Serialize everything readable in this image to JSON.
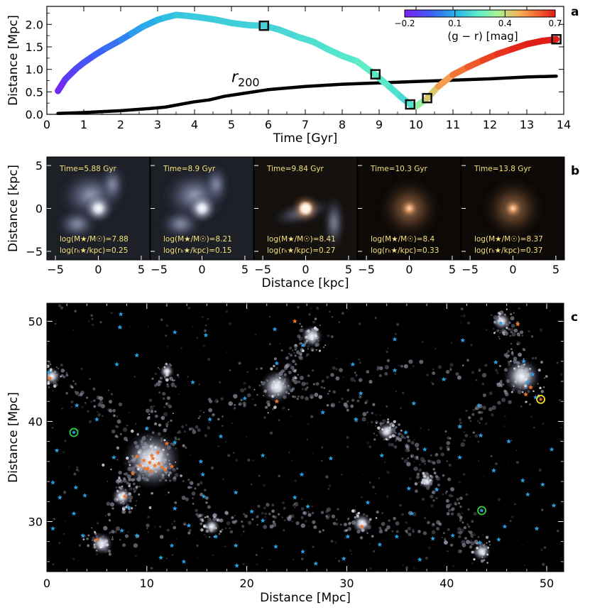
{
  "panel_labels": {
    "a": "a",
    "b": "b",
    "c": "c"
  },
  "chart_data": [
    {
      "type": "line",
      "panel": "a",
      "xlabel": "Time [Gyr]",
      "ylabel": "Distance [Mpc]",
      "xlim": [
        0,
        14
      ],
      "ylim": [
        0,
        2.4
      ],
      "xticks": [
        0,
        1,
        2,
        3,
        4,
        5,
        6,
        7,
        8,
        9,
        10,
        11,
        12,
        13,
        14
      ],
      "yticks": [
        0.0,
        0.5,
        1.0,
        1.5,
        2.0
      ],
      "ytick_labels": [
        "0.0",
        "0.5",
        "1.0",
        "1.5",
        "2.0"
      ],
      "r200_label": "r",
      "r200_sub": "200",
      "series": [
        {
          "role": "orbit colored by (g - r)",
          "x": [
            0.3,
            0.5,
            0.8,
            1.0,
            1.3,
            1.6,
            2.0,
            2.3,
            2.6,
            3.0,
            3.2,
            3.5,
            3.8,
            4.2,
            4.6,
            5.0,
            5.5,
            5.9,
            6.3,
            6.8,
            7.2,
            7.6,
            8.0,
            8.4,
            8.9,
            9.3,
            9.6,
            9.84,
            10.0,
            10.3,
            10.6,
            11.0,
            11.4,
            11.8,
            12.2,
            12.6,
            13.0,
            13.4,
            13.8
          ],
          "y": [
            0.52,
            0.78,
            1.02,
            1.15,
            1.32,
            1.47,
            1.65,
            1.8,
            1.95,
            2.1,
            2.15,
            2.21,
            2.19,
            2.15,
            2.1,
            2.03,
            1.98,
            1.97,
            1.88,
            1.72,
            1.62,
            1.45,
            1.3,
            1.18,
            0.88,
            0.6,
            0.38,
            0.22,
            0.18,
            0.35,
            0.62,
            0.88,
            1.05,
            1.2,
            1.34,
            1.45,
            1.56,
            1.63,
            1.67
          ],
          "gr": [
            -0.2,
            -0.15,
            -0.1,
            -0.08,
            -0.05,
            -0.02,
            0.0,
            0.05,
            0.08,
            0.1,
            0.12,
            0.15,
            0.15,
            0.16,
            0.16,
            0.17,
            0.17,
            0.18,
            0.18,
            0.2,
            0.2,
            0.22,
            0.22,
            0.24,
            0.25,
            0.22,
            0.2,
            0.18,
            0.25,
            0.4,
            0.48,
            0.55,
            0.6,
            0.63,
            0.66,
            0.68,
            0.7,
            0.7,
            0.7
          ]
        },
        {
          "name": "r200",
          "x": [
            0.3,
            1.0,
            2.0,
            2.8,
            3.2,
            3.6,
            4.0,
            4.4,
            4.8,
            5.2,
            6.0,
            7.0,
            8.0,
            9.0,
            10.0,
            11.0,
            12.0,
            13.0,
            13.8
          ],
          "y": [
            0.02,
            0.04,
            0.08,
            0.13,
            0.16,
            0.22,
            0.28,
            0.32,
            0.4,
            0.45,
            0.55,
            0.62,
            0.67,
            0.7,
            0.73,
            0.76,
            0.79,
            0.83,
            0.85
          ]
        }
      ],
      "markers": {
        "x": [
          5.88,
          8.9,
          9.84,
          10.3,
          13.8
        ],
        "y": [
          1.97,
          0.89,
          0.22,
          0.36,
          1.67
        ]
      },
      "colorbar": {
        "label": "(g − r) [mag]",
        "ticks": [
          "−0.2",
          "0.1",
          "0.4",
          "0.7"
        ],
        "range": [
          -0.2,
          0.7
        ]
      }
    },
    {
      "type": "heatmap",
      "panel": "b",
      "xlabel": "Distance [kpc]",
      "ylabel": "Distance [kpc]",
      "xlim": [
        -6,
        6
      ],
      "ylim": [
        -6,
        6
      ],
      "xtick_labels": [
        "−5",
        "0",
        "5"
      ],
      "ytick_labels": [
        "5",
        "0",
        "−5"
      ],
      "snapshots": [
        {
          "time": "Time=5.88 Gyr",
          "mass": "log(M★/M☉)=7.88",
          "radius": "log(rₕ★/kpc)=0.25",
          "style": "gas"
        },
        {
          "time": "Time=8.9 Gyr",
          "mass": "log(M★/M☉)=8.21",
          "radius": "log(rₕ★/kpc)=0.15",
          "style": "gas"
        },
        {
          "time": "Time=9.84 Gyr",
          "mass": "log(M★/M☉)=8.41",
          "radius": "log(rₕ★/kpc)=0.27",
          "style": "stripped"
        },
        {
          "time": "Time=10.3 Gyr",
          "mass": "log(M★/M☉)=8.4",
          "radius": "log(rₕ★/kpc)=0.33",
          "style": "quenched"
        },
        {
          "time": "Time=13.8 Gyr",
          "mass": "log(M★/M☉)=8.37",
          "radius": "log(rₕ★/kpc)=0.37",
          "style": "quenched"
        }
      ]
    },
    {
      "type": "scatter",
      "panel": "c",
      "xlabel": "Distance [Mpc]",
      "ylabel": "Distance [Mpc]",
      "xlim": [
        0,
        51.7
      ],
      "ylim": [
        25,
        51.8
      ],
      "xticks": [
        0,
        10,
        20,
        30,
        40,
        50
      ],
      "yticks": [
        30,
        40,
        50
      ],
      "clusters": [
        {
          "x": 10.5,
          "y": 36.2,
          "size": 3.2
        },
        {
          "x": 23.0,
          "y": 43.5,
          "size": 1.8
        },
        {
          "x": 47.5,
          "y": 44.5,
          "size": 2.0
        },
        {
          "x": 26.5,
          "y": 48.5,
          "size": 1.2
        },
        {
          "x": 0.5,
          "y": 44.5,
          "size": 1.0
        },
        {
          "x": 5.5,
          "y": 27.8,
          "size": 1.2
        },
        {
          "x": 31.5,
          "y": 29.8,
          "size": 1.1
        },
        {
          "x": 7.5,
          "y": 32.5,
          "size": 1.1
        },
        {
          "x": 45.5,
          "y": 50.0,
          "size": 1.0
        },
        {
          "x": 43.5,
          "y": 27.0,
          "size": 1.0
        },
        {
          "x": 34.0,
          "y": 39.0,
          "size": 1.0
        },
        {
          "x": 16.5,
          "y": 29.5,
          "size": 0.9
        },
        {
          "x": 12.0,
          "y": 45.0,
          "size": 0.8
        },
        {
          "x": 38.0,
          "y": 34.0,
          "size": 0.8
        }
      ],
      "blue_stars": [
        [
          7.4,
          50.7
        ],
        [
          7.3,
          49.4
        ],
        [
          9.0,
          46.6
        ],
        [
          7.0,
          45.7
        ],
        [
          14.6,
          43.9
        ],
        [
          15.9,
          48.6
        ],
        [
          12.8,
          48.9
        ],
        [
          22.8,
          49.2
        ],
        [
          25.6,
          47.6
        ],
        [
          30.6,
          45.7
        ],
        [
          34.8,
          45.1
        ],
        [
          45.4,
          49.8
        ],
        [
          41.6,
          48.1
        ],
        [
          47.7,
          46.0
        ],
        [
          48.6,
          44.7
        ],
        [
          48.9,
          42.4
        ],
        [
          48.1,
          43.9
        ],
        [
          43.2,
          41.6
        ],
        [
          36.7,
          41.8
        ],
        [
          41.3,
          39.5
        ],
        [
          30.9,
          40.2
        ],
        [
          23.0,
          45.8
        ],
        [
          19.8,
          42.3
        ],
        [
          17.4,
          38.5
        ],
        [
          12.8,
          37.9
        ],
        [
          15.4,
          36.0
        ],
        [
          11.5,
          35.3
        ],
        [
          6.7,
          36.4
        ],
        [
          1.0,
          37.1
        ],
        [
          0.6,
          33.9
        ],
        [
          1.3,
          32.4
        ],
        [
          2.9,
          33.4
        ],
        [
          3.8,
          32.6
        ],
        [
          12.8,
          31.3
        ],
        [
          15.7,
          32.5
        ],
        [
          18.9,
          32.9
        ],
        [
          21.6,
          30.1
        ],
        [
          20.5,
          31.0
        ],
        [
          25.5,
          34.7
        ],
        [
          28.4,
          36.3
        ],
        [
          33.5,
          36.6
        ],
        [
          35.9,
          38.9
        ],
        [
          37.8,
          37.2
        ],
        [
          41.3,
          36.4
        ],
        [
          43.4,
          38.6
        ],
        [
          46.2,
          38.0
        ],
        [
          47.6,
          34.1
        ],
        [
          48.1,
          32.7
        ],
        [
          49.6,
          33.7
        ],
        [
          50.7,
          31.6
        ],
        [
          45.8,
          29.5
        ],
        [
          45.2,
          28.2
        ],
        [
          43.3,
          27.9
        ],
        [
          40.6,
          28.6
        ],
        [
          38.6,
          28.3
        ],
        [
          37.3,
          26.2
        ],
        [
          35.0,
          28.5
        ],
        [
          33.3,
          27.7
        ],
        [
          30.1,
          28.5
        ],
        [
          29.7,
          26.3
        ],
        [
          26.9,
          25.8
        ],
        [
          25.6,
          27.0
        ],
        [
          22.9,
          27.5
        ],
        [
          18.9,
          27.6
        ],
        [
          16.9,
          28.5
        ],
        [
          14.2,
          29.6
        ],
        [
          12.5,
          27.6
        ],
        [
          11.4,
          26.4
        ],
        [
          9.0,
          28.6
        ],
        [
          7.5,
          29.1
        ],
        [
          3.6,
          28.6
        ],
        [
          0.6,
          29.3
        ],
        [
          2.7,
          30.8
        ],
        [
          13.7,
          26.0
        ],
        [
          19.0,
          25.6
        ],
        [
          24.8,
          32.4
        ],
        [
          36.5,
          30.8
        ],
        [
          39.0,
          33.2
        ],
        [
          27.6,
          40.9
        ],
        [
          31.4,
          42.8
        ],
        [
          39.7,
          44.2
        ],
        [
          10.0,
          39.3
        ],
        [
          5.0,
          40.2
        ],
        [
          3.0,
          41.6
        ],
        [
          16.3,
          40.2
        ],
        [
          21.6,
          36.6
        ],
        [
          44.7,
          35.1
        ],
        [
          32.1,
          31.9
        ],
        [
          49.0,
          29.3
        ],
        [
          50.5,
          37.2
        ],
        [
          44.9,
          45.9
        ],
        [
          36.2,
          33.3
        ],
        [
          26.1,
          31.5
        ],
        [
          15.6,
          34.7
        ],
        [
          8.2,
          31.4
        ],
        [
          0.2,
          44.9
        ],
        [
          34.8,
          48.2
        ]
      ],
      "orange_stars": [
        [
          9.0,
          36.5
        ],
        [
          9.3,
          35.6
        ],
        [
          9.7,
          36.1
        ],
        [
          10.1,
          35.3
        ],
        [
          10.5,
          36.6
        ],
        [
          10.8,
          35.6
        ],
        [
          11.2,
          35.8
        ],
        [
          11.5,
          35.4
        ],
        [
          10.3,
          35.9
        ],
        [
          9.8,
          35.3
        ],
        [
          12.0,
          37.8
        ],
        [
          12.5,
          35.5
        ],
        [
          8.6,
          34.8
        ],
        [
          10.4,
          35.0
        ],
        [
          11.1,
          36.9
        ],
        [
          11.8,
          35.2
        ],
        [
          24.8,
          50.0
        ],
        [
          23.0,
          42.0
        ],
        [
          47.9,
          42.7
        ],
        [
          48.4,
          43.4
        ],
        [
          47.1,
          49.7
        ],
        [
          0.3,
          44.3
        ],
        [
          5.0,
          28.2
        ],
        [
          7.8,
          32.5
        ],
        [
          31.5,
          29.5
        ],
        [
          10.6,
          36.3
        ]
      ],
      "circles": [
        {
          "x": 2.7,
          "y": 38.9,
          "color": "green"
        },
        {
          "x": 43.5,
          "y": 31.1,
          "color": "green"
        },
        {
          "x": 49.4,
          "y": 42.2,
          "color": "yellow"
        }
      ]
    }
  ]
}
